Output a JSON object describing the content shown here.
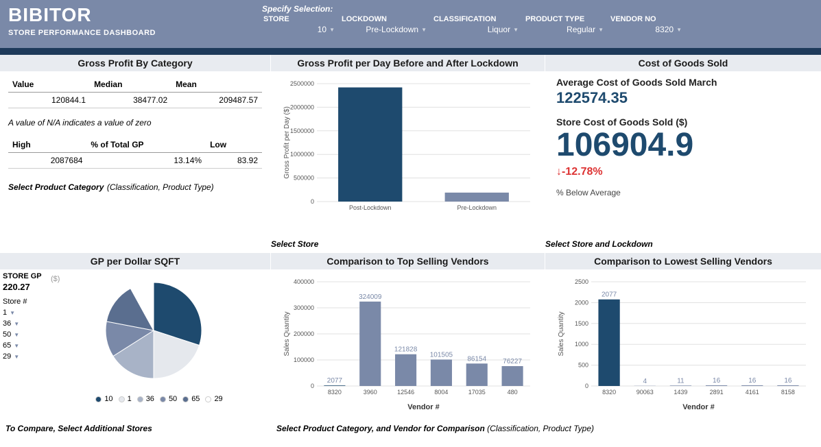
{
  "header": {
    "brand": "BIBITOR",
    "subtitle": "STORE PERFORMANCE DASHBOARD",
    "specify": "Specify Selection:",
    "filters": {
      "store": {
        "label": "STORE",
        "value": "10"
      },
      "lockdown": {
        "label": "LOCKDOWN",
        "value": "Pre-Lockdown"
      },
      "classification": {
        "label": "CLASSIFICATION",
        "value": "Liquor"
      },
      "product_type": {
        "label": "PRODUCT TYPE",
        "value": "Regular"
      },
      "vendor_no": {
        "label": "VENDOR NO",
        "value": "8320"
      }
    }
  },
  "gp_category": {
    "title": "Gross Profit By Category",
    "table1": {
      "headers": [
        "Value",
        "Median",
        "Mean"
      ],
      "row": [
        "120844.1",
        "38477.02",
        "209487.57"
      ]
    },
    "note": "A value of N/A indicates a value of zero",
    "table2": {
      "headers": [
        "High",
        "% of Total GP",
        "Low"
      ],
      "row": [
        "2087684",
        "13.14%",
        "83.92"
      ]
    },
    "helper": "Select Product Category",
    "helper_sub": "(Classification, Product Type)"
  },
  "gp_per_day": {
    "title": "Gross Profit per Day Before and After Lockdown",
    "ylabel": "Gross Profit per Day ($)",
    "categories": [
      "Post-Lockdown",
      "Pre-Lockdown"
    ],
    "values": [
      2420000,
      190000
    ],
    "ylim": [
      0,
      2500000
    ],
    "ytick_step": 500000,
    "bar_colors": [
      "#1e4a6e",
      "#7a89a8"
    ],
    "grid_color": "#e0e0e0",
    "helper": "Select Store"
  },
  "cogs": {
    "title": "Cost of Goods Sold",
    "avg_label": "Average Cost of Goods Sold March",
    "avg_value": "122574.35",
    "store_label": "Store Cost of Goods Sold  ($)",
    "store_value": "106904.9",
    "delta": "-12.78%",
    "delta_caption": "% Below Average",
    "helper": "Select Store and Lockdown"
  },
  "gp_sqft": {
    "title": "GP per Dollar SQFT",
    "store_gp_label": "STORE GP",
    "store_gp_value": "220.27",
    "unit": "($)",
    "store_label": "Store #",
    "store_selectors": [
      "1",
      "36",
      "50",
      "65",
      "29"
    ],
    "pie": {
      "slices": [
        {
          "label": "10",
          "value": 30,
          "color": "#1e4a6e"
        },
        {
          "label": "1",
          "value": 20,
          "color": "#e5e8ed"
        },
        {
          "label": "36",
          "value": 16,
          "color": "#a8b3c7"
        },
        {
          "label": "50",
          "value": 12,
          "color": "#7a89a8"
        },
        {
          "label": "65",
          "value": 14,
          "color": "#5a6e8f"
        },
        {
          "label": "29",
          "value": 8,
          "color": "#ffffff"
        }
      ]
    },
    "helper": "To Compare, Select Additional Stores"
  },
  "top_vendors": {
    "title": "Comparison to Top Selling Vendors",
    "ylabel": "Sales Quantity",
    "xlabel": "Vendor #",
    "categories": [
      "8320",
      "3960",
      "12546",
      "8004",
      "17035",
      "480"
    ],
    "values": [
      2077,
      324009,
      121828,
      101505,
      86154,
      76227
    ],
    "ylim": [
      0,
      400000
    ],
    "ytick_step": 100000,
    "bar_colors": [
      "#1e4a6e",
      "#7a89a8",
      "#7a89a8",
      "#7a89a8",
      "#7a89a8",
      "#7a89a8"
    ],
    "grid_color": "#e0e0e0"
  },
  "low_vendors": {
    "title": "Comparison to Lowest Selling Vendors",
    "ylabel": "Sales Quantity",
    "xlabel": "Vendor #",
    "categories": [
      "8320",
      "90063",
      "1439",
      "2891",
      "4161",
      "8158"
    ],
    "values": [
      2077,
      4,
      11,
      16,
      16,
      16
    ],
    "ylim": [
      0,
      2500
    ],
    "ytick_step": 500,
    "bar_colors": [
      "#1e4a6e",
      "#7a89a8",
      "#7a89a8",
      "#7a89a8",
      "#7a89a8",
      "#7a89a8"
    ],
    "grid_color": "#e0e0e0"
  },
  "bottom_helper": {
    "text": "Select Product Category, and Vendor for Comparison",
    "sub": "(Classification, Product Type)"
  }
}
